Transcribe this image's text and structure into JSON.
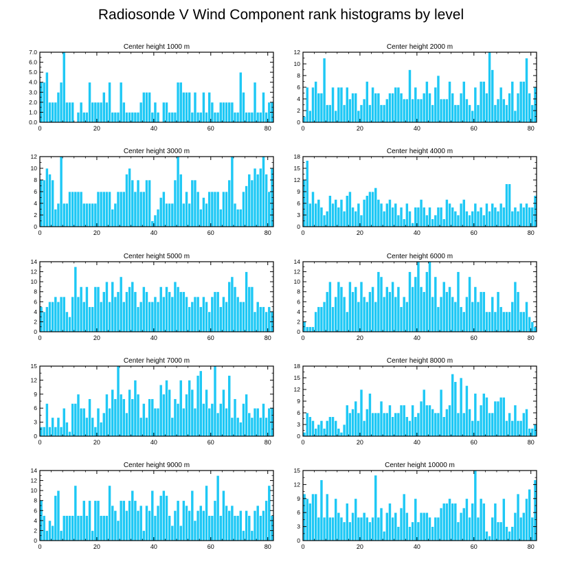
{
  "figure_title": "Radiosonde V Wind Component rank histograms by level",
  "colors": {
    "bar_fill": "#1ec8f5",
    "bar_edge": "#ffffff",
    "axis": "#000000"
  },
  "chart_data": [
    {
      "type": "bar",
      "title": "Center height 1000 m",
      "xlim": [
        0,
        82
      ],
      "ylim": [
        0,
        7
      ],
      "xticks": [
        0,
        20,
        40,
        60,
        80
      ],
      "xtick_labels": [
        "0",
        "20",
        "40",
        "60",
        "80"
      ],
      "yticks": [
        0,
        1,
        2,
        3,
        4,
        5,
        6,
        7
      ],
      "ytick_labels": [
        "0.0",
        "1.0",
        "2.0",
        "3.0",
        "4.0",
        "5.0",
        "6.0",
        "7.0"
      ],
      "values": [
        4,
        4,
        5,
        2,
        2,
        2,
        3,
        4,
        7,
        2,
        2,
        2,
        0,
        1,
        2,
        1,
        1,
        4,
        2,
        2,
        2,
        2,
        3,
        2,
        4,
        1,
        1,
        1,
        4,
        2,
        1,
        1,
        1,
        1,
        1,
        2,
        3,
        3,
        3,
        1,
        2,
        1,
        0,
        2,
        2,
        1,
        1,
        1,
        4,
        4,
        3,
        3,
        3,
        1,
        3,
        1,
        1,
        3,
        1,
        3,
        2,
        1,
        1,
        2,
        2,
        2,
        2,
        2,
        1,
        1,
        5,
        3,
        1,
        1,
        1,
        4,
        1,
        1,
        3,
        1,
        2,
        2
      ]
    },
    {
      "type": "bar",
      "title": "Center height 2000 m",
      "xlim": [
        0,
        82
      ],
      "ylim": [
        0,
        12
      ],
      "xticks": [
        0,
        20,
        40,
        60,
        80
      ],
      "xtick_labels": [
        "0",
        "20",
        "40",
        "60",
        "80"
      ],
      "yticks": [
        0,
        2,
        4,
        6,
        8,
        10,
        12
      ],
      "ytick_labels": [
        "0",
        "2",
        "4",
        "6",
        "8",
        "10",
        "12"
      ],
      "values": [
        1,
        6,
        2,
        6,
        7,
        5,
        5,
        11,
        3,
        3,
        6,
        2,
        6,
        6,
        3,
        6,
        4,
        5,
        5,
        2,
        3,
        4,
        7,
        3,
        6,
        5,
        5,
        3,
        3,
        4,
        5,
        5,
        6,
        6,
        5,
        4,
        4,
        9,
        4,
        6,
        4,
        4,
        5,
        7,
        5,
        3,
        6,
        8,
        4,
        4,
        4,
        7,
        5,
        3,
        3,
        5,
        7,
        4,
        3,
        2,
        6,
        3,
        7,
        7,
        5,
        12,
        9,
        3,
        4,
        6,
        4,
        3,
        5,
        7,
        2,
        5,
        7,
        7,
        11,
        5,
        3,
        6
      ]
    },
    {
      "type": "bar",
      "title": "Center height 3000 m",
      "xlim": [
        0,
        82
      ],
      "ylim": [
        0,
        12
      ],
      "xticks": [
        0,
        20,
        40,
        60,
        80
      ],
      "xtick_labels": [
        "0",
        "20",
        "40",
        "60",
        "80"
      ],
      "yticks": [
        0,
        2,
        4,
        6,
        8,
        10,
        12
      ],
      "ytick_labels": [
        "0",
        "2",
        "4",
        "6",
        "8",
        "10",
        "12"
      ],
      "values": [
        8,
        8,
        10,
        9,
        8,
        3,
        4,
        12,
        4,
        4,
        6,
        6,
        6,
        6,
        6,
        4,
        4,
        4,
        4,
        4,
        6,
        6,
        6,
        6,
        6,
        3,
        4,
        6,
        6,
        6,
        9,
        10,
        8,
        6,
        8,
        6,
        6,
        8,
        8,
        1,
        2,
        3,
        5,
        6,
        4,
        4,
        4,
        8,
        12,
        9,
        4,
        6,
        4,
        8,
        8,
        6,
        3,
        5,
        4,
        6,
        6,
        6,
        6,
        3,
        6,
        6,
        8,
        12,
        4,
        3,
        3,
        6,
        7,
        9,
        8,
        10,
        9,
        10,
        12,
        9,
        6,
        10
      ]
    },
    {
      "type": "bar",
      "title": "Center height 4000 m",
      "xlim": [
        0,
        82
      ],
      "ylim": [
        0,
        18
      ],
      "xticks": [
        0,
        20,
        40,
        60,
        80
      ],
      "xtick_labels": [
        "0",
        "20",
        "40",
        "60",
        "80"
      ],
      "yticks": [
        0,
        3,
        6,
        9,
        12,
        15,
        18
      ],
      "ytick_labels": [
        "0",
        "3",
        "6",
        "9",
        "12",
        "15",
        "18"
      ],
      "values": [
        12,
        17,
        6,
        9,
        6,
        7,
        5,
        3,
        4,
        8,
        6,
        7,
        5,
        7,
        4,
        8,
        9,
        5,
        4,
        6,
        3,
        7,
        8,
        9,
        9,
        10,
        7,
        6,
        4,
        6,
        7,
        5,
        6,
        3,
        5,
        2,
        6,
        4,
        1,
        5,
        5,
        7,
        5,
        3,
        5,
        2,
        3,
        5,
        5,
        2,
        7,
        6,
        5,
        4,
        3,
        6,
        7,
        4,
        3,
        4,
        6,
        4,
        5,
        3,
        6,
        4,
        6,
        5,
        4,
        6,
        5,
        11,
        11,
        4,
        5,
        4,
        6,
        5,
        6,
        5,
        5,
        8
      ]
    },
    {
      "type": "bar",
      "title": "Center height 5000 m",
      "xlim": [
        0,
        82
      ],
      "ylim": [
        0,
        14
      ],
      "xticks": [
        0,
        20,
        40,
        60,
        80
      ],
      "xtick_labels": [
        "0",
        "20",
        "40",
        "60",
        "80"
      ],
      "yticks": [
        0,
        2,
        4,
        6,
        8,
        10,
        12,
        14
      ],
      "ytick_labels": [
        "0",
        "2",
        "4",
        "6",
        "8",
        "10",
        "12",
        "14"
      ],
      "values": [
        5,
        4,
        5,
        6,
        6,
        7,
        6,
        7,
        7,
        4,
        3,
        7,
        13,
        7,
        9,
        6,
        9,
        5,
        5,
        9,
        9,
        6,
        8,
        10,
        6,
        10,
        7,
        8,
        11,
        6,
        8,
        9,
        10,
        8,
        5,
        6,
        9,
        8,
        6,
        6,
        7,
        6,
        9,
        7,
        9,
        8,
        7,
        10,
        9,
        8,
        8,
        7,
        5,
        6,
        7,
        7,
        5,
        7,
        6,
        4,
        7,
        8,
        8,
        5,
        7,
        6,
        10,
        11,
        9,
        7,
        6,
        6,
        12,
        9,
        9,
        4,
        6,
        5,
        5,
        4,
        5,
        4
      ]
    },
    {
      "type": "bar",
      "title": "Center height 6000 m",
      "xlim": [
        0,
        82
      ],
      "ylim": [
        0,
        14
      ],
      "xticks": [
        0,
        20,
        40,
        60,
        80
      ],
      "xtick_labels": [
        "0",
        "20",
        "40",
        "60",
        "80"
      ],
      "yticks": [
        0,
        2,
        4,
        6,
        8,
        10,
        12,
        14
      ],
      "ytick_labels": [
        "0",
        "2",
        "4",
        "6",
        "8",
        "10",
        "12",
        "14"
      ],
      "values": [
        2,
        1,
        1,
        1,
        4,
        5,
        5,
        6,
        8,
        10,
        5,
        7,
        10,
        9,
        7,
        4,
        10,
        8,
        9,
        6,
        10,
        7,
        6,
        8,
        9,
        6,
        12,
        11,
        7,
        9,
        8,
        10,
        7,
        9,
        5,
        7,
        6,
        12,
        9,
        11,
        14,
        9,
        8,
        12,
        14,
        7,
        11,
        5,
        7,
        10,
        8,
        9,
        7,
        6,
        12,
        5,
        4,
        7,
        11,
        6,
        9,
        6,
        8,
        8,
        4,
        4,
        7,
        4,
        8,
        5,
        4,
        4,
        4,
        6,
        10,
        8,
        4,
        4,
        6,
        3,
        2,
        1
      ]
    },
    {
      "type": "bar",
      "title": "Center height 7000 m",
      "xlim": [
        0,
        82
      ],
      "ylim": [
        0,
        15
      ],
      "xticks": [
        0,
        20,
        40,
        60,
        80
      ],
      "xtick_labels": [
        "0",
        "20",
        "40",
        "60",
        "80"
      ],
      "yticks": [
        0,
        3,
        6,
        9,
        12,
        15
      ],
      "ytick_labels": [
        "0",
        "3",
        "6",
        "9",
        "12",
        "15"
      ],
      "values": [
        2,
        2,
        7,
        2,
        4,
        2,
        4,
        2,
        6,
        3,
        1,
        7,
        7,
        9,
        6,
        6,
        4,
        8,
        4,
        2,
        6,
        3,
        5,
        9,
        6,
        10,
        8,
        15,
        9,
        8,
        5,
        10,
        8,
        12,
        9,
        4,
        7,
        4,
        8,
        8,
        6,
        6,
        11,
        9,
        12,
        10,
        4,
        8,
        7,
        12,
        6,
        9,
        12,
        10,
        6,
        13,
        14,
        7,
        10,
        6,
        7,
        15,
        5,
        7,
        10,
        6,
        13,
        4,
        8,
        4,
        3,
        7,
        9,
        5,
        4,
        6,
        6,
        4,
        7,
        4,
        6,
        6
      ]
    },
    {
      "type": "bar",
      "title": "Center height 8000 m",
      "xlim": [
        0,
        82
      ],
      "ylim": [
        0,
        18
      ],
      "xticks": [
        0,
        20,
        40,
        60,
        80
      ],
      "xtick_labels": [
        "0",
        "20",
        "40",
        "60",
        "80"
      ],
      "yticks": [
        0,
        3,
        6,
        9,
        12,
        15,
        18
      ],
      "ytick_labels": [
        "0",
        "3",
        "6",
        "9",
        "12",
        "15",
        "18"
      ],
      "values": [
        1,
        6,
        5,
        4,
        2,
        3,
        4,
        2,
        4,
        5,
        5,
        4,
        2,
        1,
        3,
        8,
        6,
        7,
        9,
        6,
        12,
        4,
        7,
        11,
        6,
        6,
        6,
        9,
        6,
        6,
        8,
        5,
        6,
        6,
        8,
        8,
        5,
        4,
        8,
        5,
        6,
        9,
        12,
        8,
        8,
        7,
        6,
        6,
        12,
        5,
        7,
        8,
        16,
        14,
        6,
        15,
        6,
        13,
        7,
        4,
        11,
        4,
        8,
        11,
        10,
        6,
        6,
        9,
        9,
        10,
        10,
        4,
        6,
        4,
        8,
        4,
        4,
        6,
        7,
        2,
        2,
        3
      ]
    },
    {
      "type": "bar",
      "title": "Center height 9000 m",
      "xlim": [
        0,
        82
      ],
      "ylim": [
        0,
        14
      ],
      "xticks": [
        0,
        20,
        40,
        60,
        80
      ],
      "xtick_labels": [
        "0",
        "20",
        "40",
        "60",
        "80"
      ],
      "yticks": [
        0,
        2,
        4,
        6,
        8,
        10,
        12,
        14
      ],
      "ytick_labels": [
        "0",
        "2",
        "4",
        "6",
        "8",
        "10",
        "12",
        "14"
      ],
      "values": [
        8,
        5,
        2,
        4,
        3,
        9,
        10,
        2,
        5,
        5,
        5,
        5,
        11,
        5,
        5,
        8,
        5,
        8,
        2,
        8,
        8,
        5,
        5,
        5,
        11,
        7,
        6,
        4,
        8,
        8,
        6,
        8,
        10,
        8,
        6,
        7,
        2,
        7,
        6,
        10,
        5,
        7,
        9,
        10,
        9,
        5,
        3,
        6,
        8,
        3,
        8,
        7,
        6,
        10,
        4,
        6,
        7,
        6,
        11,
        5,
        5,
        8,
        13,
        5,
        10,
        7,
        6,
        7,
        5,
        5,
        6,
        2,
        6,
        5,
        2,
        6,
        7,
        5,
        6,
        8,
        11,
        5
      ]
    },
    {
      "type": "bar",
      "title": "Center height 10000 m",
      "xlim": [
        0,
        82
      ],
      "ylim": [
        0,
        15
      ],
      "xticks": [
        0,
        20,
        40,
        60,
        80
      ],
      "xtick_labels": [
        "0",
        "20",
        "40",
        "60",
        "80"
      ],
      "yticks": [
        0,
        3,
        6,
        9,
        12,
        15
      ],
      "ytick_labels": [
        "0",
        "3",
        "6",
        "9",
        "12",
        "15"
      ],
      "values": [
        10,
        9,
        8,
        10,
        10,
        5,
        13,
        5,
        10,
        5,
        5,
        9,
        6,
        5,
        4,
        8,
        4,
        6,
        9,
        5,
        5,
        6,
        5,
        4,
        5,
        14,
        5,
        7,
        2,
        6,
        8,
        5,
        6,
        3,
        7,
        10,
        6,
        3,
        4,
        9,
        4,
        6,
        6,
        6,
        5,
        3,
        5,
        5,
        7,
        8,
        8,
        9,
        8,
        8,
        4,
        6,
        7,
        9,
        5,
        8,
        15,
        5,
        9,
        8,
        2,
        1,
        5,
        8,
        4,
        4,
        9,
        3,
        2,
        3,
        6,
        10,
        5,
        6,
        9,
        11,
        5,
        13
      ]
    }
  ]
}
